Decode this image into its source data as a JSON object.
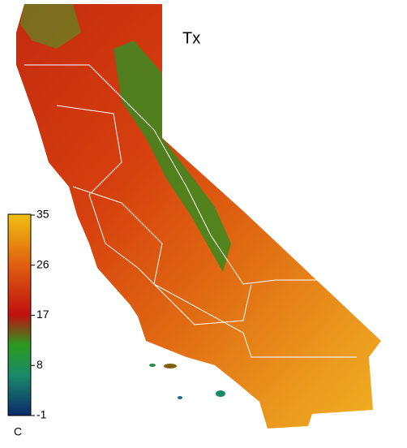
{
  "title": "Tx",
  "colorbar": {
    "unit": "C",
    "range": [
      -1,
      35
    ],
    "ticks": [
      35,
      26,
      17,
      8,
      -1
    ]
  }
}
